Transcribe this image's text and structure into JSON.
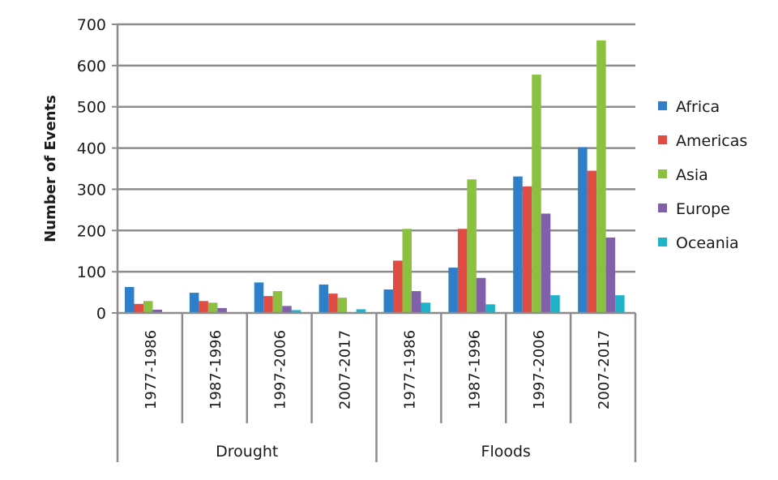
{
  "chart_data": {
    "type": "bar",
    "title": "",
    "xlabel": "",
    "ylabel": "Number of Events",
    "ylim": [
      0,
      700
    ],
    "yticks": [
      0,
      100,
      200,
      300,
      400,
      500,
      600,
      700
    ],
    "grid": true,
    "legend_position": "right",
    "groups": [
      {
        "name": "Drought",
        "categories": [
          "1977-1986",
          "1987-1996",
          "1997-2006",
          "2007-2017"
        ]
      },
      {
        "name": "Floods",
        "categories": [
          "1977-1986",
          "1987-1996",
          "1997-2006",
          "2007-2017"
        ]
      }
    ],
    "categories": [
      "Drought 1977-1986",
      "Drought 1987-1996",
      "Drought 1997-2006",
      "Drought 2007-2017",
      "Floods 1977-1986",
      "Floods 1987-1996",
      "Floods 1997-2006",
      "Floods 2007-2017"
    ],
    "series": [
      {
        "name": "Africa",
        "color": "#2e7fc8",
        "values": [
          63,
          49,
          74,
          69,
          57,
          110,
          331,
          402
        ]
      },
      {
        "name": "Americas",
        "color": "#e04b43",
        "values": [
          22,
          29,
          41,
          47,
          127,
          204,
          307,
          345
        ]
      },
      {
        "name": "Asia",
        "color": "#8cc040",
        "values": [
          29,
          25,
          53,
          37,
          204,
          324,
          578,
          661
        ]
      },
      {
        "name": "Europe",
        "color": "#8060a8",
        "values": [
          8,
          12,
          17,
          1,
          53,
          85,
          241,
          183
        ]
      },
      {
        "name": "Oceania",
        "color": "#1fb3c8",
        "values": [
          1,
          0,
          7,
          9,
          25,
          21,
          43,
          43
        ]
      }
    ]
  }
}
